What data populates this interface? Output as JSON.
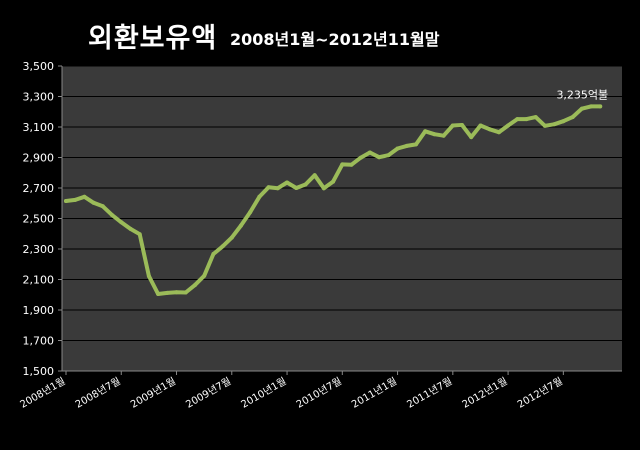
{
  "chart_data": {
    "type": "line",
    "title": "외환보유액",
    "subtitle": "2008년1월~2012년11월말",
    "ylim": [
      1500,
      3500
    ],
    "y_ticks": [
      "1,500",
      "1,700",
      "1,900",
      "2,100",
      "2,300",
      "2,500",
      "2,700",
      "2,900",
      "3,100",
      "3,300",
      "3,500"
    ],
    "x_tick_labels": [
      "2008년1월",
      "2008년7월",
      "2009년1월",
      "2009년7월",
      "2010년1월",
      "2010년7월",
      "2011년1월",
      "2011년7월",
      "2012년1월",
      "2012년7월"
    ],
    "grid": true,
    "line_color": "#9bbb59",
    "plot_bg": "#3a3a3a",
    "series": [
      {
        "values": [
          2615,
          2622,
          2642,
          2603,
          2580,
          2522,
          2475,
          2432,
          2397,
          2122,
          2005,
          2012,
          2017,
          2015,
          2063,
          2124,
          2267,
          2317,
          2375,
          2454,
          2542,
          2642,
          2705,
          2699,
          2736,
          2700,
          2723,
          2784,
          2698,
          2742,
          2855,
          2853,
          2899,
          2933,
          2902,
          2915,
          2959,
          2976,
          2986,
          3072,
          3053,
          3043,
          3110,
          3113,
          3034,
          3110,
          3085,
          3066,
          3110,
          3152,
          3152,
          3165,
          3108,
          3118,
          3138,
          3165,
          3220,
          3235,
          3235
        ]
      }
    ],
    "annotations": [
      {
        "text": "3,235억불",
        "x_index": 58,
        "value": 3235
      }
    ]
  }
}
